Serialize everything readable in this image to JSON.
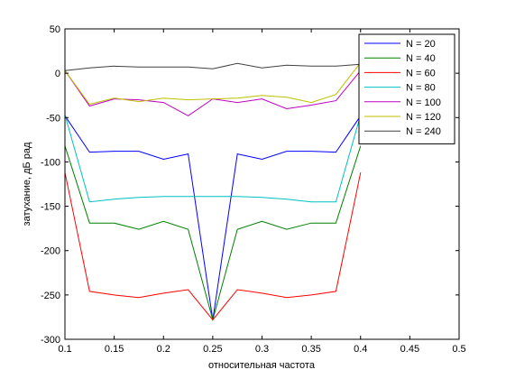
{
  "chart_data": {
    "type": "line",
    "xlabel": "относительная частота",
    "ylabel": "затухание, дБ рад",
    "xlim": [
      0.1,
      0.5
    ],
    "ylim": [
      -300,
      50
    ],
    "xticks": [
      "0.1",
      "0.15",
      "0.2",
      "0.25",
      "0.3",
      "0.35",
      "0.4",
      "0.45",
      "0.5"
    ],
    "yticks": [
      "50",
      "0",
      "-50",
      "-100",
      "-150",
      "-200",
      "-250",
      "-300"
    ],
    "grid": false,
    "legend": "top-right",
    "x": [
      0.1,
      0.125,
      0.15,
      0.175,
      0.2,
      0.225,
      0.25,
      0.275,
      0.3,
      0.325,
      0.35,
      0.375,
      0.4
    ],
    "series": [
      {
        "name": "N = 20",
        "color": "#0000ff",
        "values": [
          -48,
          -89,
          -88,
          -88,
          -97,
          -91,
          -278,
          -91,
          -97,
          -88,
          -88,
          -89,
          -48
        ]
      },
      {
        "name": "N = 40",
        "color": "#008000",
        "values": [
          -82,
          -169,
          -169,
          -176,
          -167,
          -176,
          -278,
          -176,
          -167,
          -176,
          -169,
          -169,
          -82
        ]
      },
      {
        "name": "N = 60",
        "color": "#ff0000",
        "values": [
          -112,
          -246,
          -250,
          -253,
          -248,
          -244,
          -278,
          -244,
          -248,
          -253,
          -250,
          -246,
          -112
        ]
      },
      {
        "name": "N = 80",
        "color": "#00bfbf",
        "values": [
          -47,
          -145,
          -142,
          -140,
          -139,
          -139,
          -139,
          -139,
          -140,
          -142,
          -145,
          -145,
          -47
        ]
      },
      {
        "name": "N = 100",
        "color": "#bf00bf",
        "values": [
          3,
          -37,
          -29,
          -30,
          -33,
          -48,
          -29,
          -33,
          -29,
          -40,
          -36,
          -31,
          3
        ]
      },
      {
        "name": "N = 120",
        "color": "#bfbf00",
        "values": [
          3,
          -35,
          -28,
          -32,
          -28,
          -30,
          -29,
          -28,
          -25,
          -27,
          -33,
          -24,
          12
        ]
      },
      {
        "name": "N = 240",
        "color": "#404040",
        "values": [
          3,
          6,
          8,
          7,
          7,
          7,
          5,
          11,
          6,
          9,
          8,
          8,
          10
        ]
      }
    ]
  }
}
